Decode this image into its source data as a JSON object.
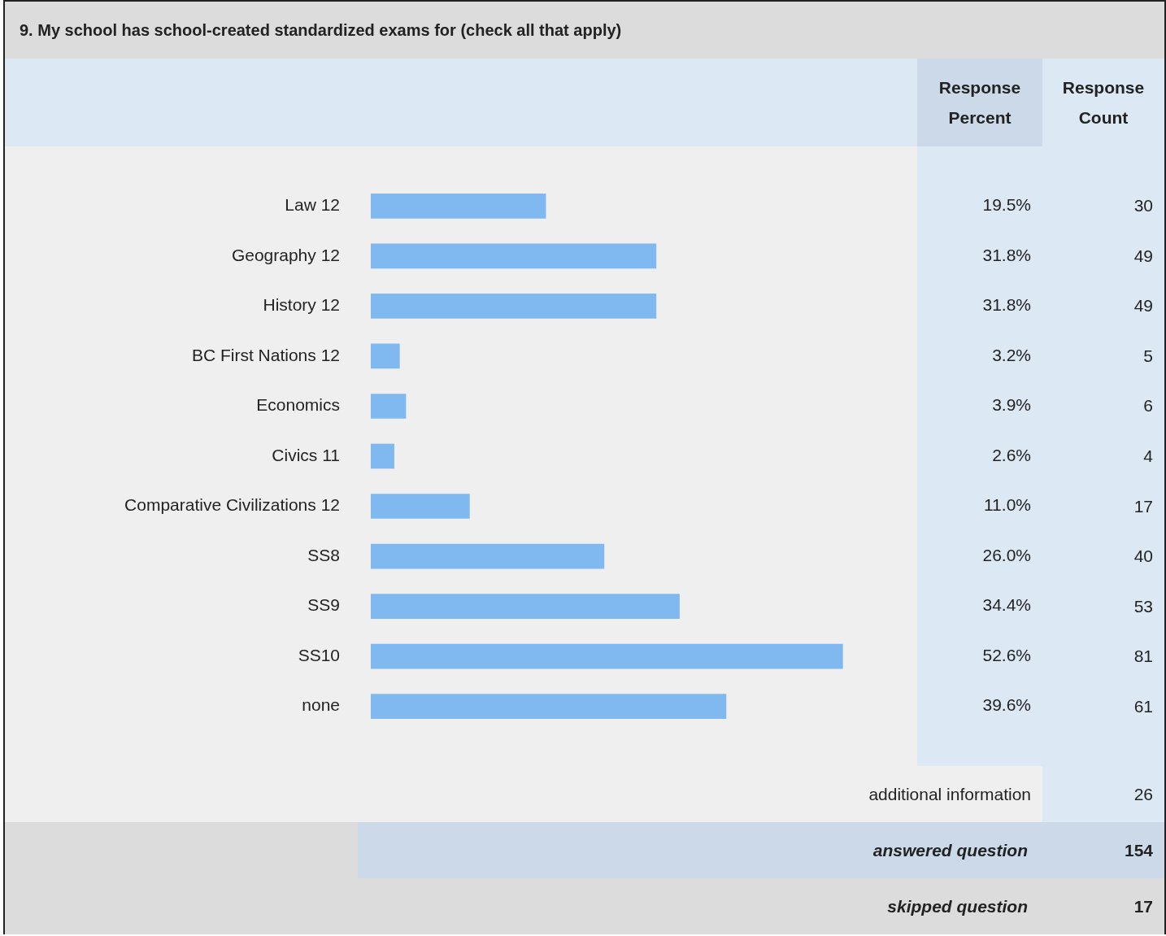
{
  "chart_data": [
    {
      "type": "bar",
      "orientation": "horizontal",
      "title": "9. My school has school-created standardized exams for (check all that apply)",
      "categories": [
        "Law 12",
        "Geography 12",
        "History 12",
        "BC First Nations 12",
        "Economics",
        "Civics 11",
        "Comparative Civilizations 12",
        "SS8",
        "SS9",
        "SS10",
        "none"
      ],
      "tick_labels": "y",
      "data_labels": true,
      "series": [
        {
          "name": "Response Percent",
          "color": "#80b8f0",
          "values": [
            19.5,
            31.8,
            31.8,
            3.2,
            3.9,
            2.6,
            11.0,
            26.0,
            34.4,
            52.6,
            39.6
          ],
          "value_labels": [
            "19.5%",
            "31.8%",
            "31.8%",
            "3.2%",
            "3.9%",
            "2.6%",
            "11.0%",
            "26.0%",
            "34.4%",
            "52.6%",
            "39.6%"
          ]
        }
      ],
      "annotations": [
        "additional information",
        "26",
        "answered question",
        "154",
        "skipped question",
        "17"
      ]
    },
    {
      "type": "other",
      "title": "Response Count",
      "data_labels": true,
      "values": [
        30,
        49,
        49,
        5,
        6,
        4,
        17,
        40,
        53,
        81,
        61
      ]
    }
  ]
}
